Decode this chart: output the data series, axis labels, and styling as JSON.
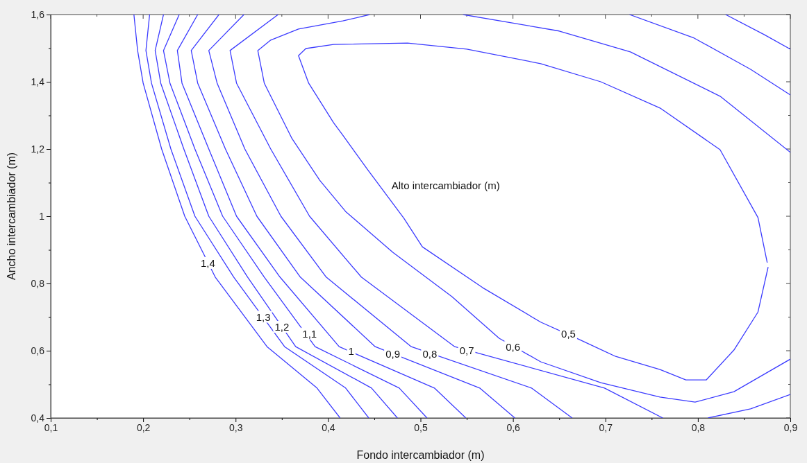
{
  "chart_data": {
    "type": "line",
    "xlabel": "Fondo intercambiador (m)",
    "ylabel": "Ancho intercambiador (m)",
    "xlim": [
      0.1,
      0.9
    ],
    "ylim": [
      0.4,
      1.6
    ],
    "xticks": [
      {
        "value": 0.1,
        "label": "0,1"
      },
      {
        "value": 0.15,
        "label": null
      },
      {
        "value": 0.2,
        "label": "0,2"
      },
      {
        "value": 0.25,
        "label": null
      },
      {
        "value": 0.3,
        "label": "0,3"
      },
      {
        "value": 0.35,
        "label": null
      },
      {
        "value": 0.4,
        "label": "0,4"
      },
      {
        "value": 0.45,
        "label": null
      },
      {
        "value": 0.5,
        "label": "0,5"
      },
      {
        "value": 0.55,
        "label": null
      },
      {
        "value": 0.6,
        "label": "0,6"
      },
      {
        "value": 0.65,
        "label": null
      },
      {
        "value": 0.7,
        "label": "0,7"
      },
      {
        "value": 0.75,
        "label": null
      },
      {
        "value": 0.8,
        "label": "0,8"
      },
      {
        "value": 0.85,
        "label": null
      },
      {
        "value": 0.9,
        "label": "0,9"
      }
    ],
    "yticks": [
      {
        "value": 0.4,
        "label": "0,4"
      },
      {
        "value": 0.5,
        "label": null
      },
      {
        "value": 0.6,
        "label": "0,6"
      },
      {
        "value": 0.7,
        "label": null
      },
      {
        "value": 0.8,
        "label": "0,8"
      },
      {
        "value": 0.9,
        "label": null
      },
      1,
      {
        "value": 1.1,
        "label": null
      },
      {
        "value": 1.2,
        "label": "1,2"
      },
      {
        "value": 1.3,
        "label": null
      },
      {
        "value": 1.4,
        "label": "1,4"
      },
      {
        "value": 1.5,
        "label": null
      },
      {
        "value": 1.6,
        "label": "1,6"
      }
    ],
    "grid": false,
    "marker": "none",
    "line_style": "solid",
    "series": [
      {
        "color": "#3b3bff",
        "x": [
          0.19,
          0.194,
          0.2,
          0.22,
          0.245,
          0.278,
          0.334,
          0.388,
          0.413
        ],
        "values": [
          1.6,
          1.493,
          1.396,
          1.2,
          1.0,
          0.819,
          0.612,
          0.489,
          0.4
        ]
      },
      {
        "color": "#3b3bff",
        "x": [
          0.207,
          0.203,
          0.209,
          0.23,
          0.256,
          0.298,
          0.353,
          0.419,
          0.444
        ],
        "values": [
          1.6,
          1.493,
          1.396,
          1.2,
          1.0,
          0.819,
          0.612,
          0.489,
          0.4
        ]
      },
      {
        "color": "#3b3bff",
        "x": [
          0.222,
          0.213,
          0.219,
          0.244,
          0.271,
          0.313,
          0.365,
          0.447,
          0.475
        ],
        "values": [
          1.6,
          1.493,
          1.396,
          1.2,
          1.0,
          0.819,
          0.612,
          0.489,
          0.4
        ]
      },
      {
        "color": "#3b3bff",
        "x": [
          0.239,
          0.222,
          0.229,
          0.256,
          0.286,
          0.331,
          0.386,
          0.477,
          0.507
        ],
        "values": [
          1.6,
          1.493,
          1.396,
          1.2,
          1.0,
          0.819,
          0.612,
          0.489,
          0.4
        ]
      },
      {
        "color": "#3b3bff",
        "x": [
          0.259,
          0.237,
          0.242,
          0.271,
          0.301,
          0.348,
          0.412,
          0.515,
          0.549
        ],
        "values": [
          1.6,
          1.493,
          1.396,
          1.2,
          1.0,
          0.819,
          0.612,
          0.489,
          0.4
        ]
      },
      {
        "color": "#3b3bff",
        "x": [
          0.282,
          0.252,
          0.259,
          0.289,
          0.323,
          0.37,
          0.451,
          0.564,
          0.602
        ],
        "values": [
          1.6,
          1.493,
          1.396,
          1.2,
          1.0,
          0.819,
          0.612,
          0.489,
          0.4
        ]
      },
      {
        "color": "#3b3bff",
        "x": [
          0.309,
          0.271,
          0.28,
          0.31,
          0.349,
          0.398,
          0.49,
          0.62,
          0.664
        ],
        "values": [
          1.6,
          1.493,
          1.396,
          1.2,
          1.0,
          0.819,
          0.612,
          0.489,
          0.4
        ]
      },
      {
        "color": "#3b3bff",
        "x": [
          0.83,
          0.872,
          0.9
        ],
        "values": [
          1.6,
          1.54,
          1.497
        ]
      },
      {
        "color": "#3b3bff",
        "x": [
          0.346,
          0.294,
          0.301,
          0.338,
          0.38,
          0.436,
          0.537,
          0.699,
          0.762
        ],
        "values": [
          1.6,
          1.493,
          1.396,
          1.2,
          1.0,
          0.819,
          0.612,
          0.489,
          0.4
        ]
      },
      {
        "color": "#3b3bff",
        "x": [
          0.811,
          0.857,
          0.9
        ],
        "values": [
          0.4,
          0.427,
          0.47
        ]
      },
      {
        "color": "#3b3bff",
        "x": [
          0.726,
          0.796,
          0.857,
          0.9
        ],
        "values": [
          1.6,
          1.53,
          1.437,
          1.361
        ]
      },
      {
        "color": "#3b3bff",
        "x": [
          0.445,
          0.416,
          0.368,
          0.338,
          0.324,
          0.331,
          0.361,
          0.391,
          0.419,
          0.47,
          0.534,
          0.585,
          0.63,
          0.695,
          0.759,
          0.797,
          0.839,
          0.9
        ],
        "values": [
          1.6,
          1.581,
          1.557,
          1.524,
          1.493,
          1.396,
          1.231,
          1.107,
          1.014,
          0.893,
          0.761,
          0.637,
          0.567,
          0.505,
          0.462,
          0.447,
          0.478,
          0.575
        ]
      },
      {
        "color": "#3b3bff",
        "x": [
          0.546,
          0.65,
          0.727,
          0.824,
          0.9
        ],
        "values": [
          1.6,
          1.551,
          1.489,
          1.357,
          1.19
        ]
      },
      {
        "color": "#3b3bff",
        "x": [
          0.876,
          0.865,
          0.839,
          0.809,
          0.787,
          0.759,
          0.711,
          0.669,
          0.63,
          0.567,
          0.502,
          0.482,
          0.443,
          0.416,
          0.406,
          0.379,
          0.368,
          0.376,
          0.406,
          0.486,
          0.55,
          0.63,
          0.695,
          0.759,
          0.824,
          0.865,
          0.875
        ],
        "values": [
          0.849,
          0.715,
          0.602,
          0.513,
          0.513,
          0.544,
          0.583,
          0.637,
          0.685,
          0.788,
          0.909,
          0.994,
          1.138,
          1.241,
          1.278,
          1.396,
          1.478,
          1.499,
          1.511,
          1.515,
          1.497,
          1.454,
          1.4,
          1.322,
          1.198,
          0.996,
          0.862
        ]
      }
    ],
    "annotations": [
      "Alto intercambiador (m)",
      {
        "text": "1,4",
        "x": 0.27,
        "y": 0.86
      },
      {
        "text": "1,3",
        "x": 0.33,
        "y": 0.7
      },
      {
        "text": "1,2",
        "x": 0.35,
        "y": 0.67
      },
      {
        "text": "1,1",
        "x": 0.38,
        "y": 0.65
      },
      {
        "text": "1",
        "x": 0.425,
        "y": 0.597
      },
      {
        "text": "0,9",
        "x": 0.47,
        "y": 0.59
      },
      {
        "text": "0,8",
        "x": 0.51,
        "y": 0.59
      },
      {
        "text": "0,7",
        "x": 0.55,
        "y": 0.6
      },
      {
        "text": "0,6",
        "x": 0.6,
        "y": 0.61
      },
      {
        "text": "0,5",
        "x": 0.66,
        "y": 0.65
      }
    ]
  }
}
